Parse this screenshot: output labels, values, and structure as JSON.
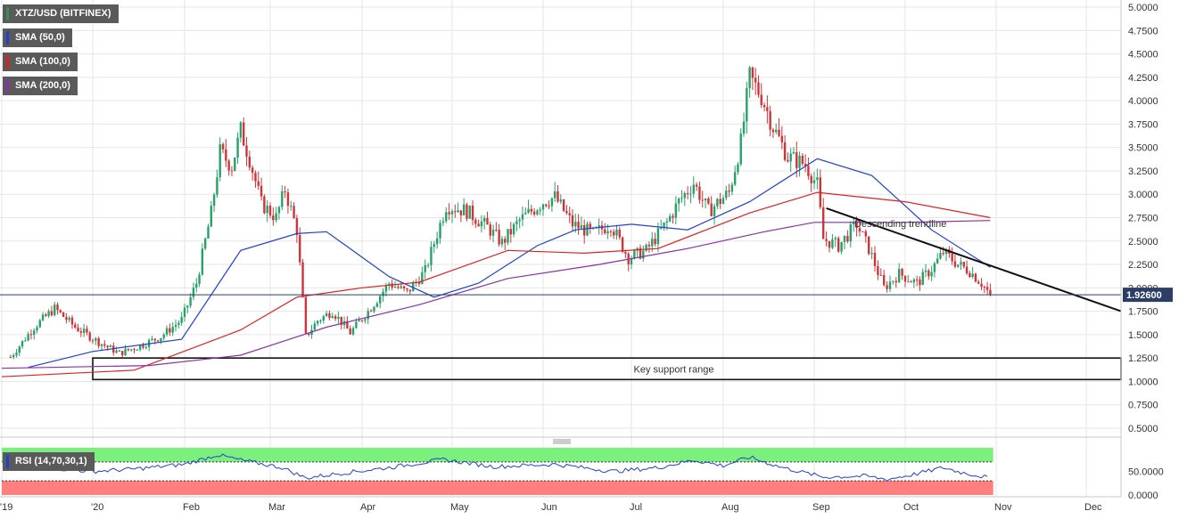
{
  "chart_data": [
    {
      "type": "candlestick",
      "title": "XTZ/USD (BITFINEX)",
      "x_ticks": [
        "'19",
        "'20",
        "Feb",
        "Mar",
        "Apr",
        "May",
        "Jun",
        "Jul",
        "Aug",
        "Sep",
        "Oct",
        "Nov",
        "Dec"
      ],
      "y_ticks": [
        "5.0000",
        "4.7500",
        "4.5000",
        "4.2500",
        "4.0000",
        "3.7500",
        "3.5000",
        "3.2500",
        "3.0000",
        "2.7500",
        "2.5000",
        "2.2500",
        "2.0000",
        "1.7500",
        "1.5000",
        "1.2500",
        "1.0000",
        "0.7500",
        "0.5000"
      ],
      "ylim": [
        0.5,
        5.0
      ],
      "grid": true,
      "last_price": "1.92600",
      "price_path": [
        [
          "2019-12-04",
          1.26
        ],
        [
          "2019-12-12",
          1.58
        ],
        [
          "2019-12-19",
          1.78
        ],
        [
          "2019-12-26",
          1.58
        ],
        [
          "2020-01-03",
          1.42
        ],
        [
          "2020-01-10",
          1.3
        ],
        [
          "2020-01-17",
          1.38
        ],
        [
          "2020-01-24",
          1.48
        ],
        [
          "2020-01-31",
          1.66
        ],
        [
          "2020-02-05",
          2.05
        ],
        [
          "2020-02-10",
          2.8
        ],
        [
          "2020-02-13",
          3.45
        ],
        [
          "2020-02-17",
          3.3
        ],
        [
          "2020-02-20",
          3.68
        ],
        [
          "2020-02-23",
          3.38
        ],
        [
          "2020-02-27",
          2.9
        ],
        [
          "2020-03-03",
          2.75
        ],
        [
          "2020-03-06",
          3.05
        ],
        [
          "2020-03-10",
          2.62
        ],
        [
          "2020-03-13",
          1.48
        ],
        [
          "2020-03-17",
          1.65
        ],
        [
          "2020-03-22",
          1.75
        ],
        [
          "2020-03-28",
          1.52
        ],
        [
          "2020-04-03",
          1.75
        ],
        [
          "2020-04-10",
          2.05
        ],
        [
          "2020-04-16",
          1.95
        ],
        [
          "2020-04-22",
          2.18
        ],
        [
          "2020-04-29",
          2.88
        ],
        [
          "2020-05-06",
          2.82
        ],
        [
          "2020-05-13",
          2.65
        ],
        [
          "2020-05-18",
          2.48
        ],
        [
          "2020-05-24",
          2.72
        ],
        [
          "2020-06-01",
          2.92
        ],
        [
          "2020-06-05",
          2.97
        ],
        [
          "2020-06-11",
          2.68
        ],
        [
          "2020-06-18",
          2.58
        ],
        [
          "2020-06-24",
          2.68
        ],
        [
          "2020-06-30",
          2.32
        ],
        [
          "2020-07-06",
          2.4
        ],
        [
          "2020-07-13",
          2.7
        ],
        [
          "2020-07-17",
          2.92
        ],
        [
          "2020-07-22",
          3.12
        ],
        [
          "2020-07-27",
          2.82
        ],
        [
          "2020-08-03",
          3.02
        ],
        [
          "2020-08-07",
          3.55
        ],
        [
          "2020-08-10",
          4.25
        ],
        [
          "2020-08-14",
          4.05
        ],
        [
          "2020-08-18",
          3.72
        ],
        [
          "2020-08-23",
          3.4
        ],
        [
          "2020-08-29",
          3.32
        ],
        [
          "2020-09-02",
          3.1
        ],
        [
          "2020-09-04",
          2.52
        ],
        [
          "2020-09-09",
          2.45
        ],
        [
          "2020-09-15",
          2.68
        ],
        [
          "2020-09-19",
          2.42
        ],
        [
          "2020-09-24",
          2.0
        ],
        [
          "2020-09-29",
          2.15
        ],
        [
          "2020-10-05",
          2.05
        ],
        [
          "2020-10-10",
          2.2
        ],
        [
          "2020-10-14",
          2.38
        ],
        [
          "2020-10-19",
          2.25
        ],
        [
          "2020-10-23",
          2.18
        ],
        [
          "2020-10-27",
          2.05
        ],
        [
          "2020-10-30",
          1.926
        ]
      ],
      "series": [
        {
          "name": "SMA (50,0)",
          "color": "#2040d0",
          "points": [
            [
              "2019-12-10",
              1.15
            ],
            [
              "2020-01-01",
              1.32
            ],
            [
              "2020-01-31",
              1.45
            ],
            [
              "2020-02-20",
              2.4
            ],
            [
              "2020-03-10",
              2.58
            ],
            [
              "2020-03-20",
              2.6
            ],
            [
              "2020-04-10",
              2.12
            ],
            [
              "2020-04-25",
              1.9
            ],
            [
              "2020-05-10",
              2.05
            ],
            [
              "2020-05-30",
              2.45
            ],
            [
              "2020-06-12",
              2.62
            ],
            [
              "2020-07-01",
              2.68
            ],
            [
              "2020-07-20",
              2.62
            ],
            [
              "2020-08-10",
              2.92
            ],
            [
              "2020-09-02",
              3.38
            ],
            [
              "2020-09-20",
              3.2
            ],
            [
              "2020-10-10",
              2.62
            ],
            [
              "2020-10-30",
              2.22
            ]
          ]
        },
        {
          "name": "SMA (100,0)",
          "color": "#e02020",
          "points": [
            [
              "2019-12-01",
              1.05
            ],
            [
              "2020-01-15",
              1.12
            ],
            [
              "2020-02-20",
              1.55
            ],
            [
              "2020-03-10",
              1.9
            ],
            [
              "2020-04-01",
              2.0
            ],
            [
              "2020-04-20",
              2.06
            ],
            [
              "2020-05-20",
              2.4
            ],
            [
              "2020-06-15",
              2.37
            ],
            [
              "2020-07-10",
              2.42
            ],
            [
              "2020-08-10",
              2.8
            ],
            [
              "2020-09-02",
              3.02
            ],
            [
              "2020-10-01",
              2.92
            ],
            [
              "2020-10-30",
              2.75
            ]
          ]
        },
        {
          "name": "SMA (200,0)",
          "color": "#8a30a8",
          "points": [
            [
              "2019-12-01",
              1.14
            ],
            [
              "2020-01-20",
              1.17
            ],
            [
              "2020-02-20",
              1.28
            ],
            [
              "2020-03-20",
              1.58
            ],
            [
              "2020-04-20",
              1.82
            ],
            [
              "2020-05-20",
              2.1
            ],
            [
              "2020-06-20",
              2.25
            ],
            [
              "2020-07-20",
              2.42
            ],
            [
              "2020-08-15",
              2.6
            ],
            [
              "2020-09-01",
              2.7
            ],
            [
              "2020-10-01",
              2.7
            ],
            [
              "2020-10-30",
              2.72
            ]
          ]
        }
      ],
      "annotations": [
        {
          "type": "trendline",
          "label": "Descending trendline",
          "from": [
            "2020-09-05",
            2.85
          ],
          "to": [
            "2020-12-20",
            1.75
          ]
        },
        {
          "type": "range",
          "label": "Key support range",
          "x": [
            "2020-01-01",
            "2020-12-31"
          ],
          "y": [
            1.02,
            1.25
          ]
        }
      ]
    },
    {
      "type": "line",
      "title": "RSI (14,70,30,1)",
      "y_ticks": [
        "50.0000",
        "0.0000"
      ],
      "ylim": [
        0,
        100
      ],
      "zones": [
        {
          "from": 70,
          "to": 100,
          "color": "#7CF07C"
        },
        {
          "from": 0,
          "to": 30,
          "color": "#FF7F7F"
        }
      ],
      "series": [
        {
          "name": "RSI",
          "color": "#2040d0",
          "points": [
            [
              "2019-12-04",
              62
            ],
            [
              "2019-12-15",
              58
            ],
            [
              "2020-01-01",
              50
            ],
            [
              "2020-01-15",
              55
            ],
            [
              "2020-02-01",
              65
            ],
            [
              "2020-02-12",
              85
            ],
            [
              "2020-02-20",
              74
            ],
            [
              "2020-03-05",
              58
            ],
            [
              "2020-03-13",
              36
            ],
            [
              "2020-03-25",
              46
            ],
            [
              "2020-04-10",
              58
            ],
            [
              "2020-04-28",
              75
            ],
            [
              "2020-05-15",
              60
            ],
            [
              "2020-06-05",
              65
            ],
            [
              "2020-06-25",
              50
            ],
            [
              "2020-07-10",
              58
            ],
            [
              "2020-07-22",
              74
            ],
            [
              "2020-08-01",
              62
            ],
            [
              "2020-08-10",
              80
            ],
            [
              "2020-08-20",
              60
            ],
            [
              "2020-09-04",
              38
            ],
            [
              "2020-09-18",
              40
            ],
            [
              "2020-09-25",
              33
            ],
            [
              "2020-10-05",
              45
            ],
            [
              "2020-10-14",
              58
            ],
            [
              "2020-10-20",
              48
            ],
            [
              "2020-10-30",
              36
            ]
          ]
        }
      ]
    }
  ],
  "legend_items": [
    {
      "label": "XTZ/USD (BITFINEX)",
      "color": "#3a8a5a"
    },
    {
      "label": "SMA (50,0)",
      "color": "#2040d0"
    },
    {
      "label": "SMA (100,0)",
      "color": "#e02020"
    },
    {
      "label": "SMA (200,0)",
      "color": "#8a30a8"
    }
  ],
  "colors": {
    "up": "#26a269",
    "down": "#d13438",
    "grid": "#e6e6e6",
    "axis": "#c8c8c8",
    "price_line": "#2c3e66"
  }
}
